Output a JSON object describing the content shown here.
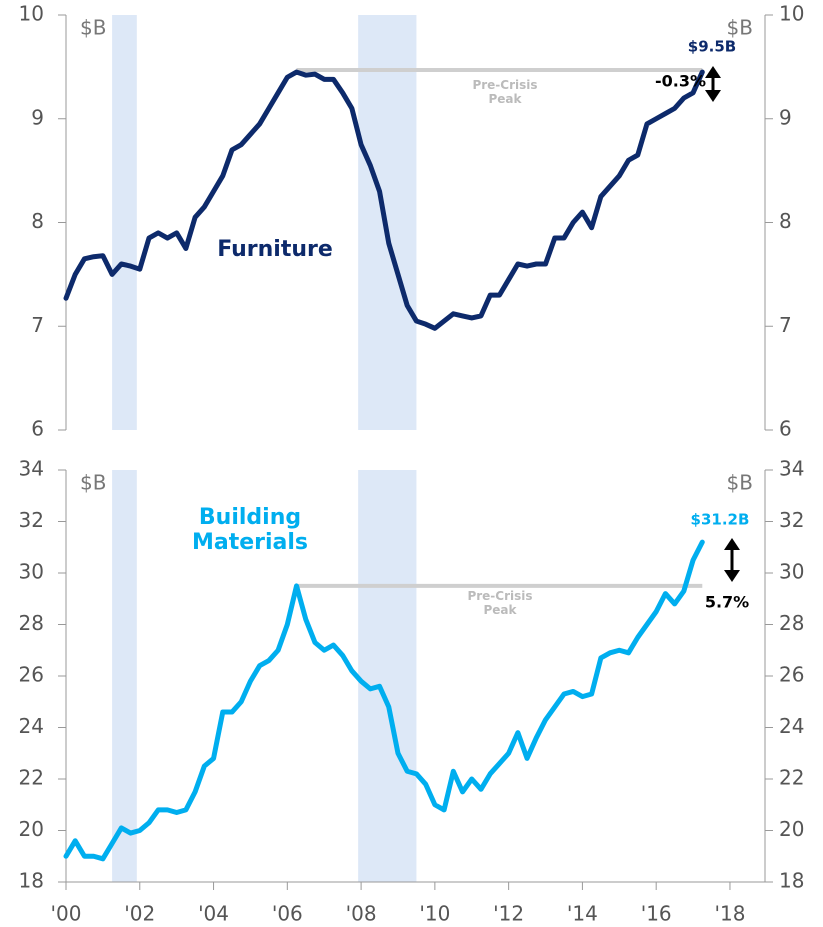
{
  "chart_data": [
    {
      "type": "line",
      "unit": "$B",
      "x": [
        2000.0,
        2000.25,
        2000.5,
        2000.75,
        2001.0,
        2001.25,
        2001.5,
        2001.75,
        2002.0,
        2002.25,
        2002.5,
        2002.75,
        2003.0,
        2003.25,
        2003.5,
        2003.75,
        2004.0,
        2004.25,
        2004.5,
        2004.75,
        2005.0,
        2005.25,
        2005.5,
        2005.75,
        2006.0,
        2006.25,
        2006.5,
        2006.75,
        2007.0,
        2007.25,
        2007.5,
        2007.75,
        2008.0,
        2008.25,
        2008.5,
        2008.75,
        2009.0,
        2009.25,
        2009.5,
        2009.75,
        2010.0,
        2010.25,
        2010.5,
        2010.75,
        2011.0,
        2011.25,
        2011.5,
        2011.75,
        2012.0,
        2012.25,
        2012.5,
        2012.75,
        2013.0,
        2013.25,
        2013.5,
        2013.75,
        2014.0,
        2014.25,
        2014.5,
        2014.75,
        2015.0,
        2015.25,
        2015.5,
        2015.75,
        2016.0,
        2016.25,
        2016.5,
        2016.75,
        2017.0,
        2017.25
      ],
      "series": [
        {
          "name": "Furniture",
          "color": "#0d2a6b",
          "values": [
            7.27,
            7.5,
            7.65,
            7.67,
            7.68,
            7.5,
            7.6,
            7.58,
            7.55,
            7.85,
            7.9,
            7.85,
            7.9,
            7.75,
            8.05,
            8.15,
            8.3,
            8.45,
            8.7,
            8.75,
            8.85,
            8.95,
            9.1,
            9.25,
            9.4,
            9.45,
            9.42,
            9.43,
            9.38,
            9.38,
            9.25,
            9.1,
            8.75,
            8.55,
            8.3,
            7.8,
            7.5,
            7.2,
            7.05,
            7.02,
            6.98,
            7.05,
            7.12,
            7.1,
            7.08,
            7.1,
            7.3,
            7.3,
            7.45,
            7.6,
            7.58,
            7.6,
            7.6,
            7.85,
            7.85,
            8.0,
            8.1,
            7.95,
            8.25,
            8.35,
            8.45,
            8.6,
            8.65,
            8.95,
            9.0,
            9.05,
            9.1,
            9.2,
            9.25,
            9.45
          ]
        }
      ],
      "xlim": [
        2000,
        2018.95
      ],
      "ylim": [
        6,
        10
      ],
      "yticks": [
        6,
        7,
        8,
        9,
        10
      ],
      "recessions": [
        [
          2001.25,
          2001.92
        ],
        [
          2007.92,
          2009.5
        ]
      ],
      "peak_line": {
        "label": [
          "Pre-Crisis",
          "Peak"
        ],
        "value": 9.47,
        "x": [
          2006.25,
          2017.25
        ]
      },
      "end_label": "$9.5B",
      "change_label": "-0.3%"
    },
    {
      "type": "line",
      "unit": "$B",
      "x": [
        2000.0,
        2000.25,
        2000.5,
        2000.75,
        2001.0,
        2001.25,
        2001.5,
        2001.75,
        2002.0,
        2002.25,
        2002.5,
        2002.75,
        2003.0,
        2003.25,
        2003.5,
        2003.75,
        2004.0,
        2004.25,
        2004.5,
        2004.75,
        2005.0,
        2005.25,
        2005.5,
        2005.75,
        2006.0,
        2006.25,
        2006.5,
        2006.75,
        2007.0,
        2007.25,
        2007.5,
        2007.75,
        2008.0,
        2008.25,
        2008.5,
        2008.75,
        2009.0,
        2009.25,
        2009.5,
        2009.75,
        2010.0,
        2010.25,
        2010.5,
        2010.75,
        2011.0,
        2011.25,
        2011.5,
        2011.75,
        2012.0,
        2012.25,
        2012.5,
        2012.75,
        2013.0,
        2013.25,
        2013.5,
        2013.75,
        2014.0,
        2014.25,
        2014.5,
        2014.75,
        2015.0,
        2015.25,
        2015.5,
        2015.75,
        2016.0,
        2016.25,
        2016.5,
        2016.75,
        2017.0,
        2017.25
      ],
      "series": [
        {
          "name": [
            "Building",
            "Materials"
          ],
          "color": "#00aeef",
          "values": [
            19.0,
            19.6,
            19.0,
            19.0,
            18.9,
            19.5,
            20.1,
            19.9,
            20.0,
            20.3,
            20.8,
            20.8,
            20.7,
            20.8,
            21.5,
            22.5,
            22.8,
            24.6,
            24.6,
            25.0,
            25.8,
            26.4,
            26.6,
            27.0,
            28.0,
            29.5,
            28.2,
            27.3,
            27.0,
            27.2,
            26.8,
            26.2,
            25.8,
            25.5,
            25.6,
            24.8,
            23.0,
            22.3,
            22.2,
            21.8,
            21.0,
            20.8,
            22.3,
            21.5,
            22.0,
            21.6,
            22.2,
            22.6,
            23.0,
            23.8,
            22.8,
            23.6,
            24.3,
            24.8,
            25.3,
            25.4,
            25.2,
            25.3,
            26.7,
            26.9,
            27.0,
            26.9,
            27.5,
            28.0,
            28.5,
            29.2,
            28.8,
            29.3,
            30.5,
            31.2
          ]
        }
      ],
      "xlim": [
        2000,
        2018.95
      ],
      "ylim": [
        18,
        34
      ],
      "yticks": [
        18,
        20,
        22,
        24,
        26,
        28,
        30,
        32,
        34
      ],
      "xticks": [
        {
          "value": 2000,
          "label": "'00"
        },
        {
          "value": 2002,
          "label": "'02"
        },
        {
          "value": 2004,
          "label": "'04"
        },
        {
          "value": 2006,
          "label": "'06"
        },
        {
          "value": 2008,
          "label": "'08"
        },
        {
          "value": 2010,
          "label": "'10"
        },
        {
          "value": 2012,
          "label": "'12"
        },
        {
          "value": 2014,
          "label": "'14"
        },
        {
          "value": 2016,
          "label": "'16"
        },
        {
          "value": 2018,
          "label": "'18"
        }
      ],
      "recessions": [
        [
          2001.25,
          2001.92
        ],
        [
          2007.92,
          2009.5
        ]
      ],
      "peak_line": {
        "label": [
          "Pre-Crisis",
          "Peak"
        ],
        "value": 29.5,
        "x": [
          2006.3,
          2017.25
        ]
      },
      "end_label": "$31.2B",
      "change_label": "5.7%"
    }
  ]
}
